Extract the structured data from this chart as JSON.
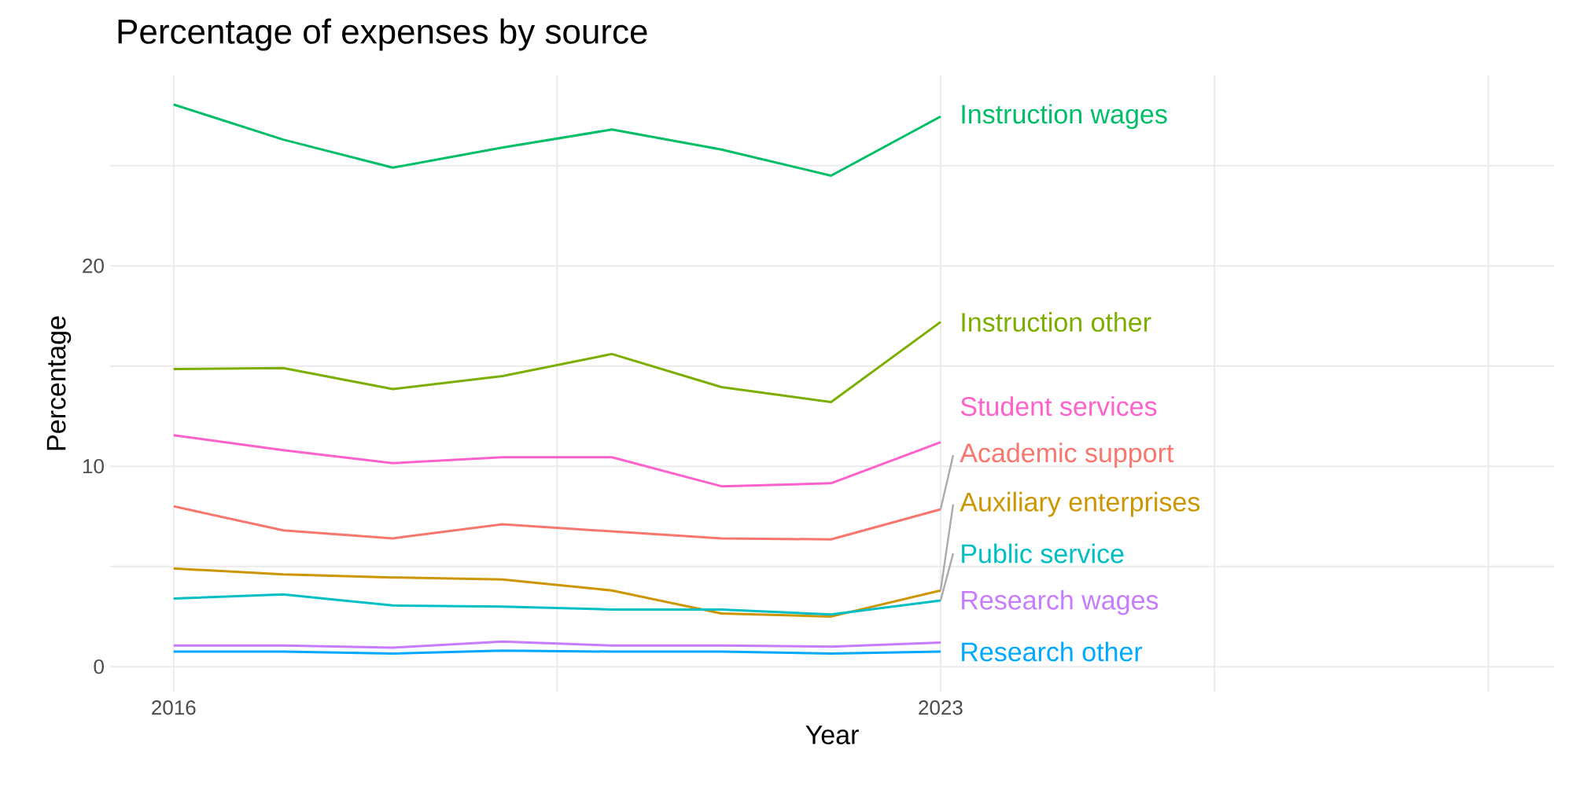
{
  "chart_data": {
    "type": "line",
    "title": "Percentage of expenses by source",
    "xlabel": "Year",
    "ylabel": "Percentage",
    "x": [
      2016,
      2017,
      2018,
      2019,
      2020,
      2021,
      2022,
      2023
    ],
    "xlim": [
      2015.42,
      2028.6
    ],
    "xticks": [
      2016,
      {
        "value": 2019.5,
        "label": null
      },
      2023,
      {
        "value": 2025.5,
        "label": null
      },
      {
        "value": 2028,
        "label": null
      }
    ],
    "ylim": [
      -1.25,
      29.5
    ],
    "yticks": [
      0,
      {
        "value": 5,
        "label": null
      },
      10,
      {
        "value": 15,
        "label": null
      },
      20,
      {
        "value": 25,
        "label": null
      }
    ],
    "grid": true,
    "legend": false,
    "line_style": "solid",
    "marker": "none",
    "series": [
      {
        "name": "Academic support",
        "color": "#F8766D",
        "values": [
          8.0,
          6.8,
          6.4,
          7.1,
          6.75,
          6.4,
          6.35,
          7.85
        ]
      },
      {
        "name": "Auxiliary enterprises",
        "color": "#CD9600",
        "values": [
          4.9,
          4.6,
          4.45,
          4.35,
          3.8,
          2.65,
          2.5,
          3.8
        ]
      },
      {
        "name": "Instruction other",
        "color": "#7CAE00",
        "values": [
          14.85,
          14.9,
          13.85,
          14.5,
          15.6,
          13.95,
          13.2,
          17.2
        ]
      },
      {
        "name": "Instruction wages",
        "color": "#00BE67",
        "values": [
          28.05,
          26.3,
          24.9,
          25.9,
          26.8,
          25.8,
          24.5,
          27.45
        ]
      },
      {
        "name": "Public service",
        "color": "#00BFC4",
        "values": [
          3.4,
          3.6,
          3.05,
          3.0,
          2.85,
          2.85,
          2.6,
          3.3
        ]
      },
      {
        "name": "Research other",
        "color": "#00A9FF",
        "values": [
          0.75,
          0.75,
          0.65,
          0.8,
          0.75,
          0.75,
          0.65,
          0.75
        ]
      },
      {
        "name": "Research wages",
        "color": "#C77CFF",
        "values": [
          1.05,
          1.05,
          0.95,
          1.25,
          1.05,
          1.05,
          1.0,
          1.2
        ]
      },
      {
        "name": "Student services",
        "color": "#FF61CC",
        "values": [
          11.55,
          10.8,
          10.15,
          10.45,
          10.45,
          9.0,
          9.15,
          11.2
        ]
      }
    ]
  }
}
